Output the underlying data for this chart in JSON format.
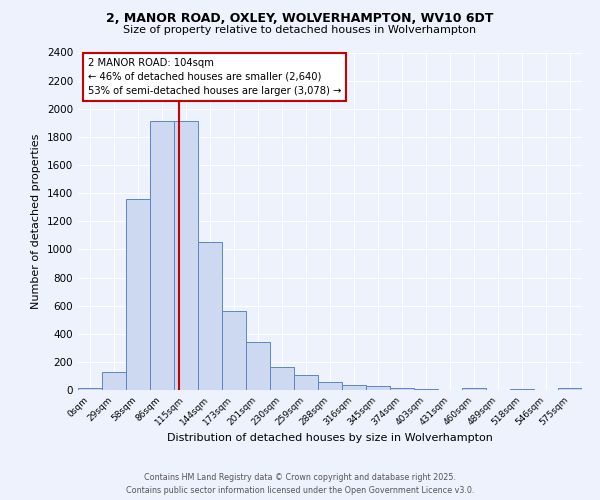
{
  "title_line1": "2, MANOR ROAD, OXLEY, WOLVERHAMPTON, WV10 6DT",
  "title_line2": "Size of property relative to detached houses in Wolverhampton",
  "xlabel": "Distribution of detached houses by size in Wolverhampton",
  "ylabel": "Number of detached properties",
  "bar_labels": [
    "0sqm",
    "29sqm",
    "58sqm",
    "86sqm",
    "115sqm",
    "144sqm",
    "173sqm",
    "201sqm",
    "230sqm",
    "259sqm",
    "288sqm",
    "316sqm",
    "345sqm",
    "374sqm",
    "403sqm",
    "431sqm",
    "460sqm",
    "489sqm",
    "518sqm",
    "546sqm",
    "575sqm"
  ],
  "bar_values": [
    15,
    130,
    1360,
    1910,
    1910,
    1050,
    560,
    340,
    165,
    110,
    60,
    35,
    25,
    15,
    5,
    0,
    15,
    0,
    5,
    0,
    15
  ],
  "bar_color": "#ccd9f0",
  "bar_edge_color": "#5b86c5",
  "ylim": [
    0,
    2400
  ],
  "yticks": [
    0,
    200,
    400,
    600,
    800,
    1000,
    1200,
    1400,
    1600,
    1800,
    2000,
    2200,
    2400
  ],
  "red_line_x": 3.72,
  "annotation_text": "2 MANOR ROAD: 104sqm\n← 46% of detached houses are smaller (2,640)\n53% of semi-detached houses are larger (3,078) →",
  "annotation_box_color": "#ffffff",
  "annotation_box_edge": "#cc0000",
  "footer_line1": "Contains HM Land Registry data © Crown copyright and database right 2025.",
  "footer_line2": "Contains public sector information licensed under the Open Government Licence v3.0.",
  "background_color": "#eef2fc",
  "grid_color": "#ffffff"
}
